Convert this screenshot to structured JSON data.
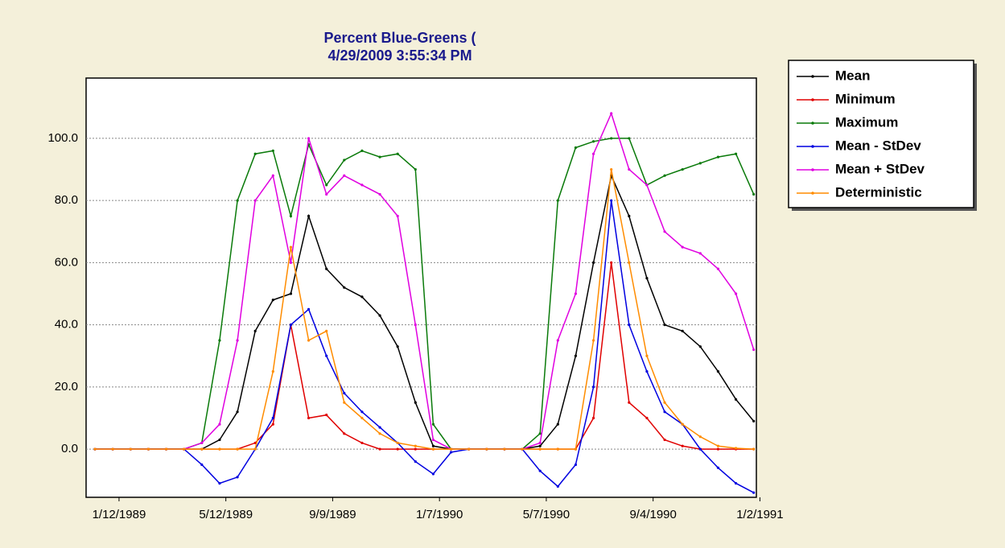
{
  "chart_data": {
    "type": "line",
    "title": "Percent Blue-Greens (",
    "subtitle": "4/29/2009 3:55:34 PM",
    "x": [
      "1988-12-16",
      "1989-01-05",
      "1989-01-25",
      "1989-02-14",
      "1989-03-06",
      "1989-03-26",
      "1989-04-15",
      "1989-05-05",
      "1989-05-25",
      "1989-06-14",
      "1989-07-04",
      "1989-07-24",
      "1989-08-13",
      "1989-09-02",
      "1989-09-22",
      "1989-10-12",
      "1989-11-01",
      "1989-11-21",
      "1989-12-11",
      "1989-12-31",
      "1990-01-20",
      "1990-02-09",
      "1990-03-01",
      "1990-03-21",
      "1990-04-10",
      "1990-04-30",
      "1990-05-20",
      "1990-06-09",
      "1990-06-29",
      "1990-07-19",
      "1990-08-08",
      "1990-08-28",
      "1990-09-17",
      "1990-10-07",
      "1990-10-27",
      "1990-11-16",
      "1990-12-06",
      "1990-12-26"
    ],
    "series": [
      {
        "name": "Mean",
        "color": "#000000",
        "values": [
          0,
          0,
          0,
          0,
          0,
          0,
          0,
          3,
          12,
          38,
          48,
          50,
          75,
          58,
          52,
          49,
          43,
          33,
          15,
          1,
          0,
          0,
          0,
          0,
          0,
          1,
          8,
          30,
          60,
          88,
          75,
          55,
          40,
          38,
          33,
          25,
          16,
          9
        ]
      },
      {
        "name": "Minimum",
        "color": "#e00000",
        "values": [
          0,
          0,
          0,
          0,
          0,
          0,
          0,
          0,
          0,
          2,
          8,
          40,
          10,
          11,
          5,
          2,
          0,
          0,
          0,
          0,
          0,
          0,
          0,
          0,
          0,
          0,
          0,
          0,
          10,
          60,
          15,
          10,
          3,
          1,
          0,
          0,
          0,
          0
        ]
      },
      {
        "name": "Maximum",
        "color": "#0a7a0a",
        "values": [
          0,
          0,
          0,
          0,
          0,
          0,
          2,
          35,
          80,
          95,
          96,
          75,
          98,
          85,
          93,
          96,
          94,
          95,
          90,
          8,
          0,
          0,
          0,
          0,
          0,
          5,
          80,
          97,
          99,
          100,
          100,
          85,
          88,
          90,
          92,
          94,
          95,
          82
        ]
      },
      {
        "name": "Mean - StDev",
        "color": "#0000e0",
        "values": [
          0,
          0,
          0,
          0,
          0,
          0,
          -5,
          -11,
          -9,
          0,
          10,
          40,
          45,
          30,
          18,
          12,
          7,
          2,
          -4,
          -8,
          -1,
          0,
          0,
          0,
          0,
          -7,
          -12,
          -5,
          20,
          80,
          40,
          25,
          12,
          8,
          0,
          -6,
          -11,
          -14
        ]
      },
      {
        "name": "Mean + StDev",
        "color": "#e000e0",
        "values": [
          0,
          0,
          0,
          0,
          0,
          0,
          2,
          8,
          35,
          80,
          88,
          60,
          100,
          82,
          88,
          85,
          82,
          75,
          40,
          3,
          0,
          0,
          0,
          0,
          0,
          2,
          35,
          50,
          95,
          108,
          90,
          85,
          70,
          65,
          63,
          58,
          50,
          32
        ]
      },
      {
        "name": "Deterministic",
        "color": "#ff8c00",
        "values": [
          0,
          0,
          0,
          0,
          0,
          0,
          0,
          0,
          0,
          0,
          25,
          65,
          35,
          38,
          15,
          10,
          5,
          2,
          1,
          0,
          0,
          0,
          0,
          0,
          0,
          0,
          0,
          0,
          35,
          90,
          60,
          30,
          15,
          8,
          4,
          1,
          0.3,
          0
        ]
      }
    ],
    "xlim": [
      "1988-12-06",
      "1990-12-29"
    ],
    "xticks": [
      {
        "value": "1989-01-12",
        "label": "1/12/1989"
      },
      {
        "value": "1989-05-12",
        "label": "5/12/1989"
      },
      {
        "value": "1989-09-09",
        "label": "9/9/1989"
      },
      {
        "value": "1990-01-07",
        "label": "1/7/1990"
      },
      {
        "value": "1990-05-07",
        "label": "5/7/1990"
      },
      {
        "value": "1990-09-04",
        "label": "9/4/1990"
      },
      {
        "value": "1991-01-02",
        "label": "1/2/1991"
      }
    ],
    "ylim": [
      -15.5,
      119.4
    ],
    "yticks": [
      {
        "value": 0,
        "label": "0.0"
      },
      {
        "value": 20,
        "label": "20.0"
      },
      {
        "value": 40,
        "label": "40.0"
      },
      {
        "value": 60,
        "label": "60.0"
      },
      {
        "value": 80,
        "label": "80.0"
      },
      {
        "value": 100,
        "label": "100.0"
      }
    ],
    "grid": true,
    "legend": "right"
  }
}
